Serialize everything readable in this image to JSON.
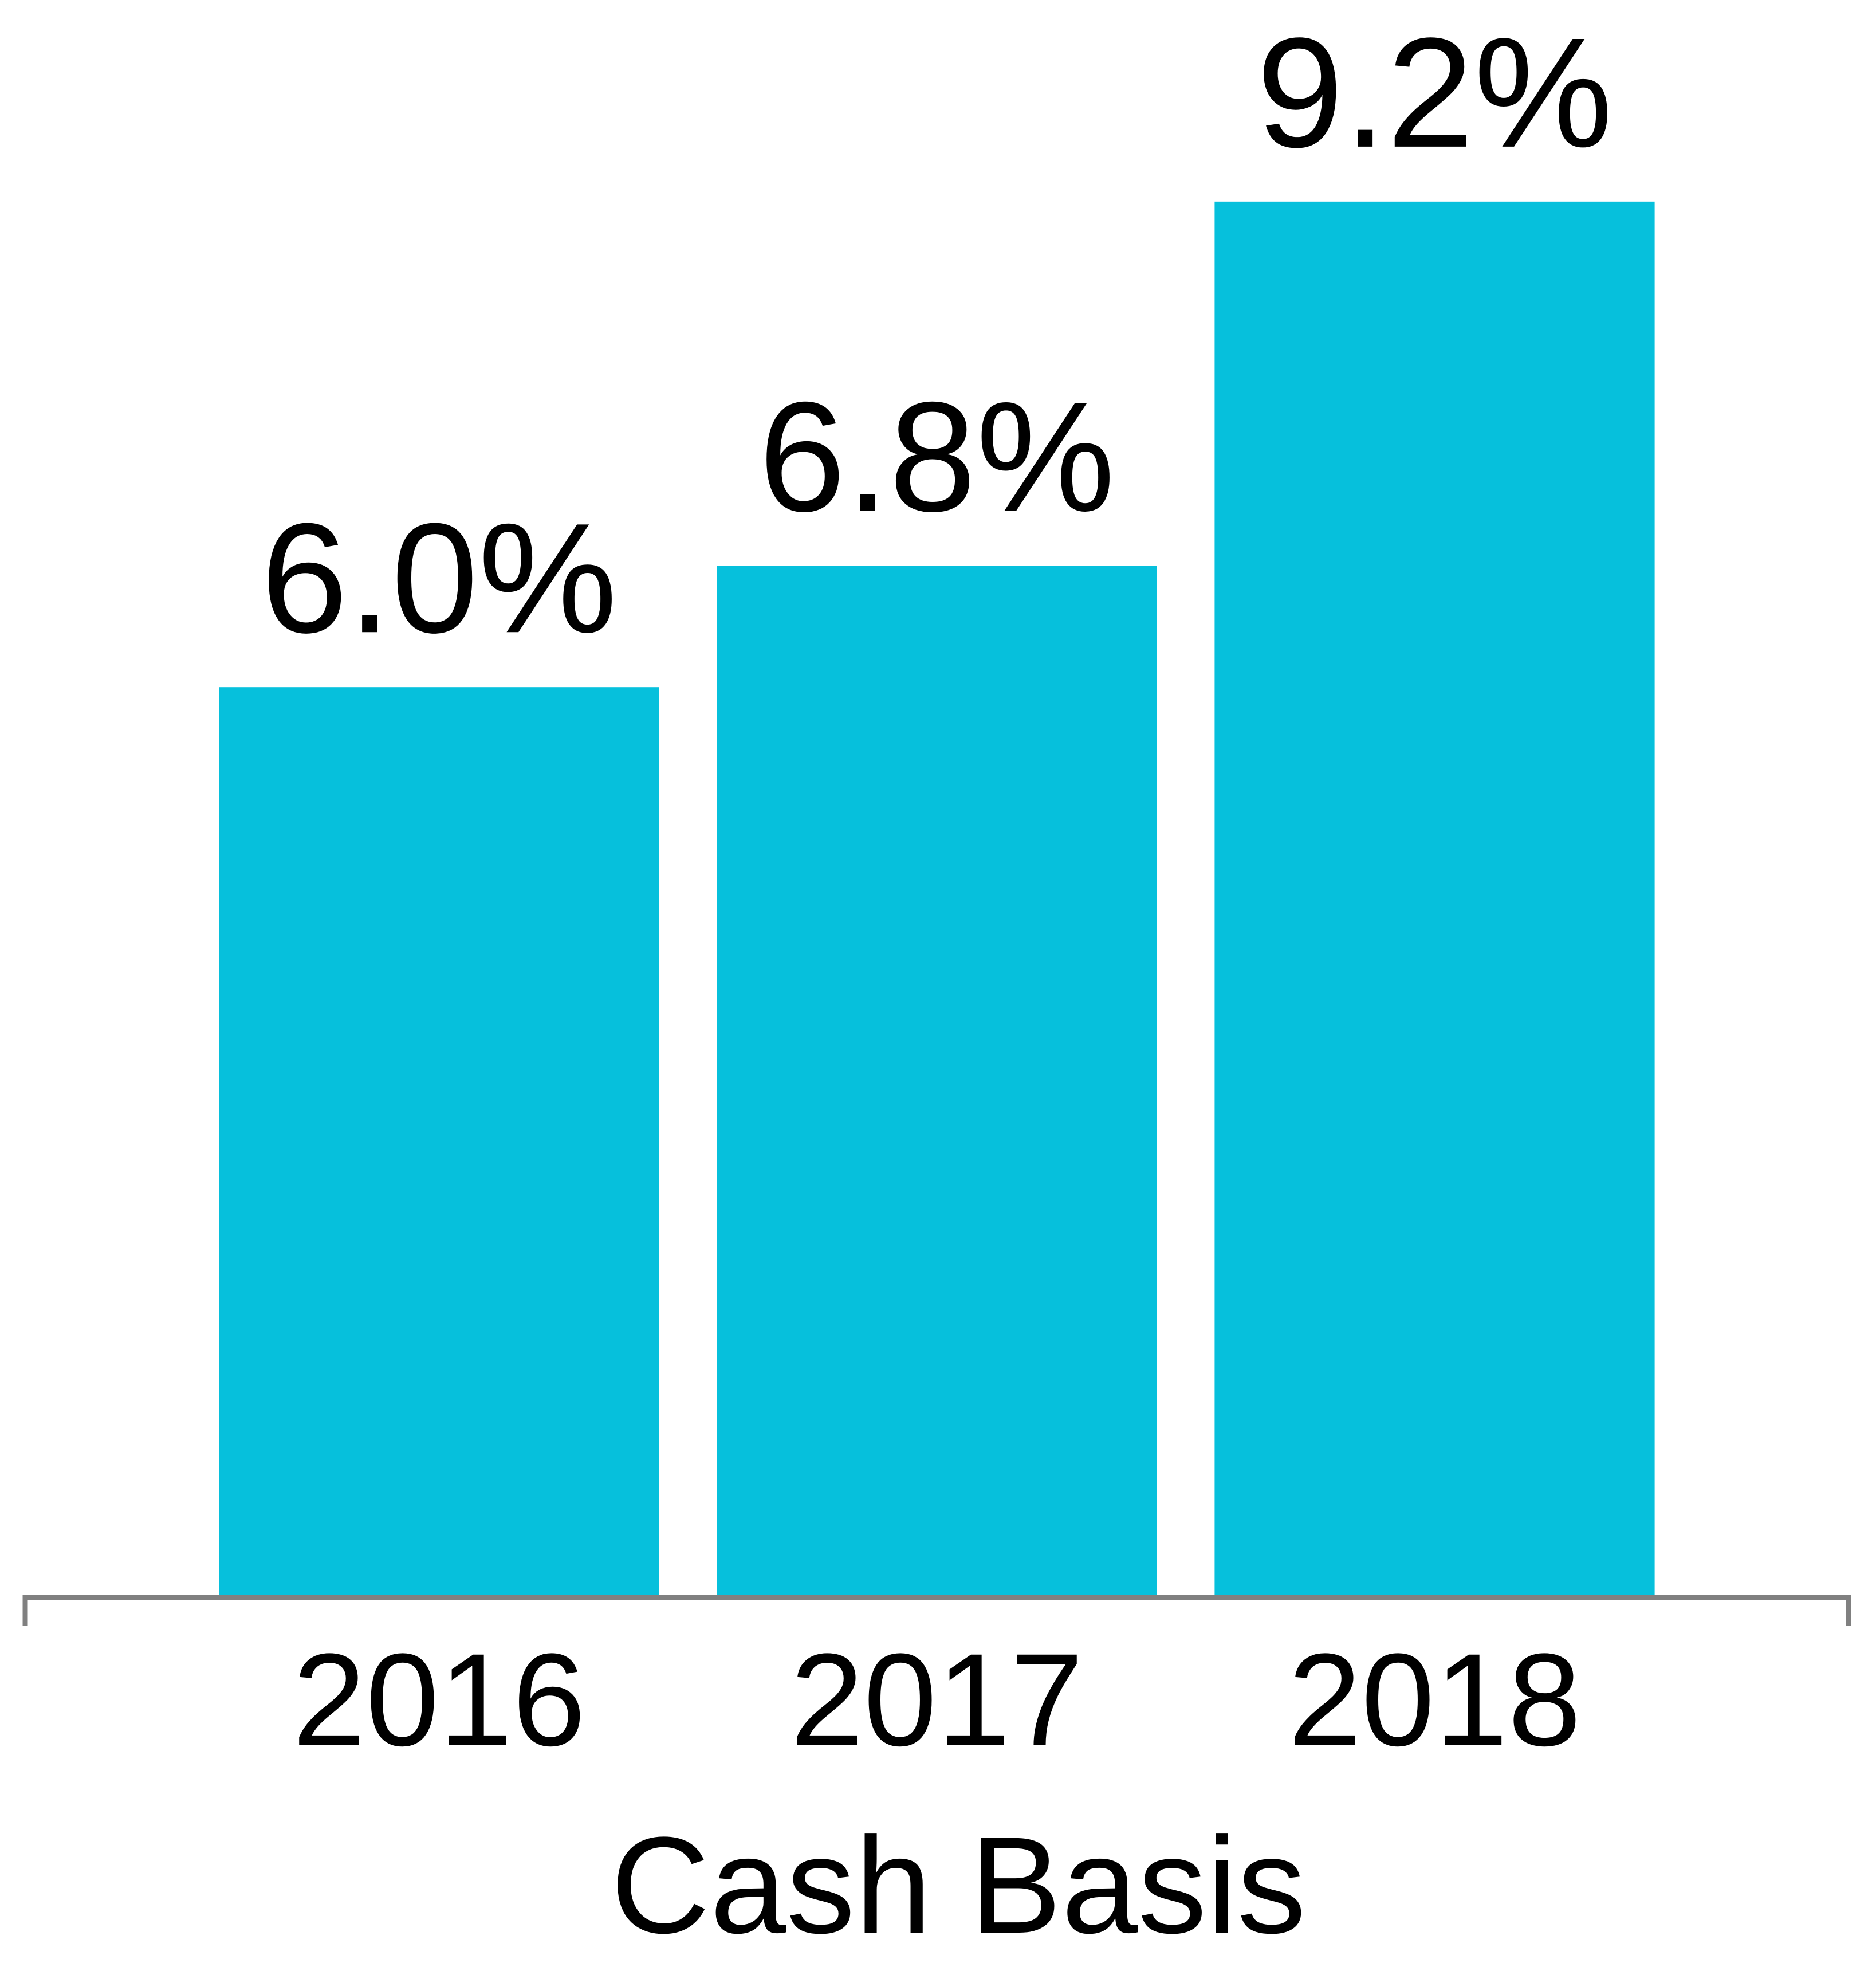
{
  "chart_data": {
    "type": "bar",
    "x_label": "Cash Basis",
    "categories": [
      "2016",
      "2017",
      "2018"
    ],
    "values": [
      6.0,
      6.8,
      9.2
    ],
    "value_labels": [
      "6.0%",
      "6.8%",
      "9.2%"
    ],
    "color": "#06c0dc",
    "ylim": [
      0,
      10
    ]
  }
}
